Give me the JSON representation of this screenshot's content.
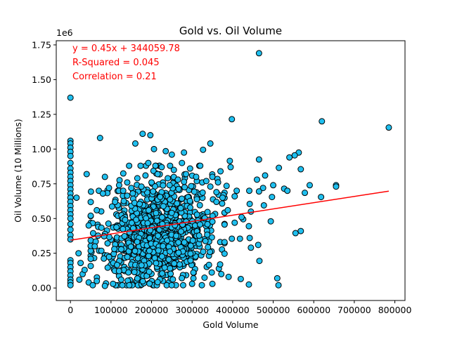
{
  "chart_data": {
    "type": "scatter",
    "title": "Gold vs. Oil Volume",
    "xlabel": "Gold Volume",
    "ylabel": "Oil Volume (10 Millions)",
    "y_offset_text": "1e6",
    "xlim": [
      -35000,
      825000
    ],
    "ylim": [
      -90000,
      1780000
    ],
    "xticks": [
      0,
      100000,
      200000,
      300000,
      400000,
      500000,
      600000,
      700000,
      800000
    ],
    "xtick_labels": [
      "0",
      "100000",
      "200000",
      "300000",
      "400000",
      "500000",
      "600000",
      "700000",
      "800000"
    ],
    "yticks": [
      0,
      250000,
      500000,
      750000,
      1000000,
      1250000,
      1500000,
      1750000
    ],
    "ytick_labels": [
      "0.00",
      "0.25",
      "0.50",
      "0.75",
      "1.00",
      "1.25",
      "1.50",
      "1.75"
    ],
    "marker_color": "#1fbfef",
    "marker_edge": "#000000",
    "regression": {
      "slope": 0.45,
      "intercept": 344059.78,
      "x_range": [
        0,
        785000
      ],
      "color": "#ff0000",
      "equation_text": "y = 0.45x + 344059.78",
      "r_squared_text": "R-Squared = 0.045",
      "correlation_text": "Correlation = 0.21",
      "text_color": "#ff0000"
    },
    "points": [
      [
        0,
        1370000
      ],
      [
        0,
        1060000
      ],
      [
        0,
        1040000
      ],
      [
        0,
        1010000
      ],
      [
        0,
        980000
      ],
      [
        0,
        950000
      ],
      [
        0,
        900000
      ],
      [
        0,
        860000
      ],
      [
        0,
        830000
      ],
      [
        0,
        800000
      ],
      [
        0,
        770000
      ],
      [
        0,
        740000
      ],
      [
        0,
        710000
      ],
      [
        0,
        680000
      ],
      [
        0,
        650000
      ],
      [
        0,
        620000
      ],
      [
        0,
        590000
      ],
      [
        0,
        560000
      ],
      [
        0,
        530000
      ],
      [
        0,
        500000
      ],
      [
        0,
        460000
      ],
      [
        0,
        420000
      ],
      [
        0,
        380000
      ],
      [
        0,
        350000
      ],
      [
        0,
        200000
      ],
      [
        0,
        180000
      ],
      [
        0,
        150000
      ],
      [
        0,
        120000
      ],
      [
        0,
        90000
      ],
      [
        0,
        60000
      ],
      [
        0,
        40000
      ],
      [
        0,
        20000
      ],
      [
        465000,
        1690000
      ],
      [
        398000,
        1215000
      ],
      [
        620000,
        1200000
      ],
      [
        785000,
        1155000
      ],
      [
        73000,
        1080000
      ],
      [
        178000,
        1110000
      ],
      [
        197000,
        1100000
      ],
      [
        160000,
        1040000
      ],
      [
        345000,
        1040000
      ],
      [
        206000,
        1000000
      ],
      [
        327000,
        995000
      ],
      [
        563000,
        975000
      ],
      [
        235000,
        985000
      ],
      [
        553000,
        955000
      ],
      [
        540000,
        940000
      ],
      [
        465000,
        925000
      ],
      [
        393000,
        915000
      ],
      [
        192000,
        900000
      ],
      [
        250000,
        960000
      ],
      [
        280000,
        975000
      ],
      [
        514000,
        865000
      ],
      [
        568000,
        855000
      ],
      [
        40000,
        820000
      ],
      [
        85000,
        800000
      ],
      [
        460000,
        780000
      ],
      [
        480000,
        810000
      ],
      [
        500000,
        740000
      ],
      [
        527000,
        715000
      ],
      [
        590000,
        740000
      ],
      [
        655000,
        740000
      ],
      [
        655000,
        730000
      ],
      [
        618000,
        655000
      ],
      [
        578000,
        685000
      ],
      [
        535000,
        700000
      ],
      [
        475000,
        720000
      ],
      [
        465000,
        695000
      ],
      [
        441000,
        700000
      ],
      [
        497000,
        655000
      ],
      [
        442000,
        605000
      ],
      [
        445000,
        550000
      ],
      [
        477000,
        595000
      ],
      [
        426000,
        495000
      ],
      [
        422000,
        510000
      ],
      [
        440000,
        445000
      ],
      [
        442000,
        360000
      ],
      [
        418000,
        355000
      ],
      [
        463000,
        310000
      ],
      [
        445000,
        290000
      ],
      [
        466000,
        195000
      ],
      [
        494000,
        480000
      ],
      [
        568000,
        410000
      ],
      [
        555000,
        395000
      ],
      [
        510000,
        70000
      ],
      [
        513000,
        20000
      ],
      [
        440000,
        25000
      ],
      [
        420000,
        65000
      ],
      [
        390000,
        80000
      ],
      [
        372000,
        100000
      ],
      [
        350000,
        30000
      ],
      [
        324000,
        20000
      ],
      [
        300000,
        30000
      ],
      [
        398000,
        355000
      ],
      [
        380000,
        330000
      ],
      [
        405000,
        470000
      ],
      [
        388000,
        560000
      ],
      [
        410000,
        700000
      ],
      [
        395000,
        870000
      ],
      [
        370000,
        840000
      ],
      [
        350000,
        800000
      ],
      [
        325000,
        760000
      ],
      [
        405000,
        660000
      ],
      [
        385000,
        735000
      ],
      [
        360000,
        620000
      ],
      [
        15000,
        650000
      ],
      [
        30000,
        100000
      ],
      [
        22000,
        60000
      ],
      [
        45000,
        40000
      ],
      [
        55000,
        20000
      ],
      [
        65000,
        50000
      ],
      [
        85000,
        15000
      ],
      [
        105000,
        30000
      ],
      [
        125000,
        60000
      ],
      [
        20000,
        250000
      ],
      [
        25000,
        180000
      ],
      [
        35000,
        130000
      ],
      [
        50000,
        210000
      ],
      [
        60000,
        300000
      ],
      [
        45000,
        450000
      ],
      [
        50000,
        520000
      ],
      [
        65000,
        560000
      ],
      [
        70000,
        700000
      ],
      [
        80000,
        680000
      ],
      [
        95000,
        720000
      ],
      [
        110000,
        620000
      ],
      [
        120000,
        740000
      ],
      [
        130000,
        700000
      ],
      [
        140000,
        760000
      ],
      [
        150000,
        720000
      ],
      [
        165000,
        790000
      ],
      [
        175000,
        730000
      ],
      [
        185000,
        810000
      ],
      [
        200000,
        760000
      ],
      [
        215000,
        820000
      ],
      [
        225000,
        870000
      ],
      [
        240000,
        790000
      ],
      [
        255000,
        850000
      ],
      [
        265000,
        780000
      ],
      [
        275000,
        900000
      ],
      [
        285000,
        820000
      ],
      [
        295000,
        860000
      ],
      [
        310000,
        800000
      ],
      [
        320000,
        880000
      ],
      [
        335000,
        770000
      ],
      [
        345000,
        730000
      ],
      [
        360000,
        690000
      ],
      [
        375000,
        650000
      ]
    ],
    "cluster": {
      "count": 950,
      "x_min": 50000,
      "x_max": 380000,
      "x_center": 220000,
      "x_sd": 70000,
      "y_min": 20000,
      "y_max": 880000,
      "y_center": 400000,
      "y_sd": 190000,
      "seed": 20240611
    }
  }
}
